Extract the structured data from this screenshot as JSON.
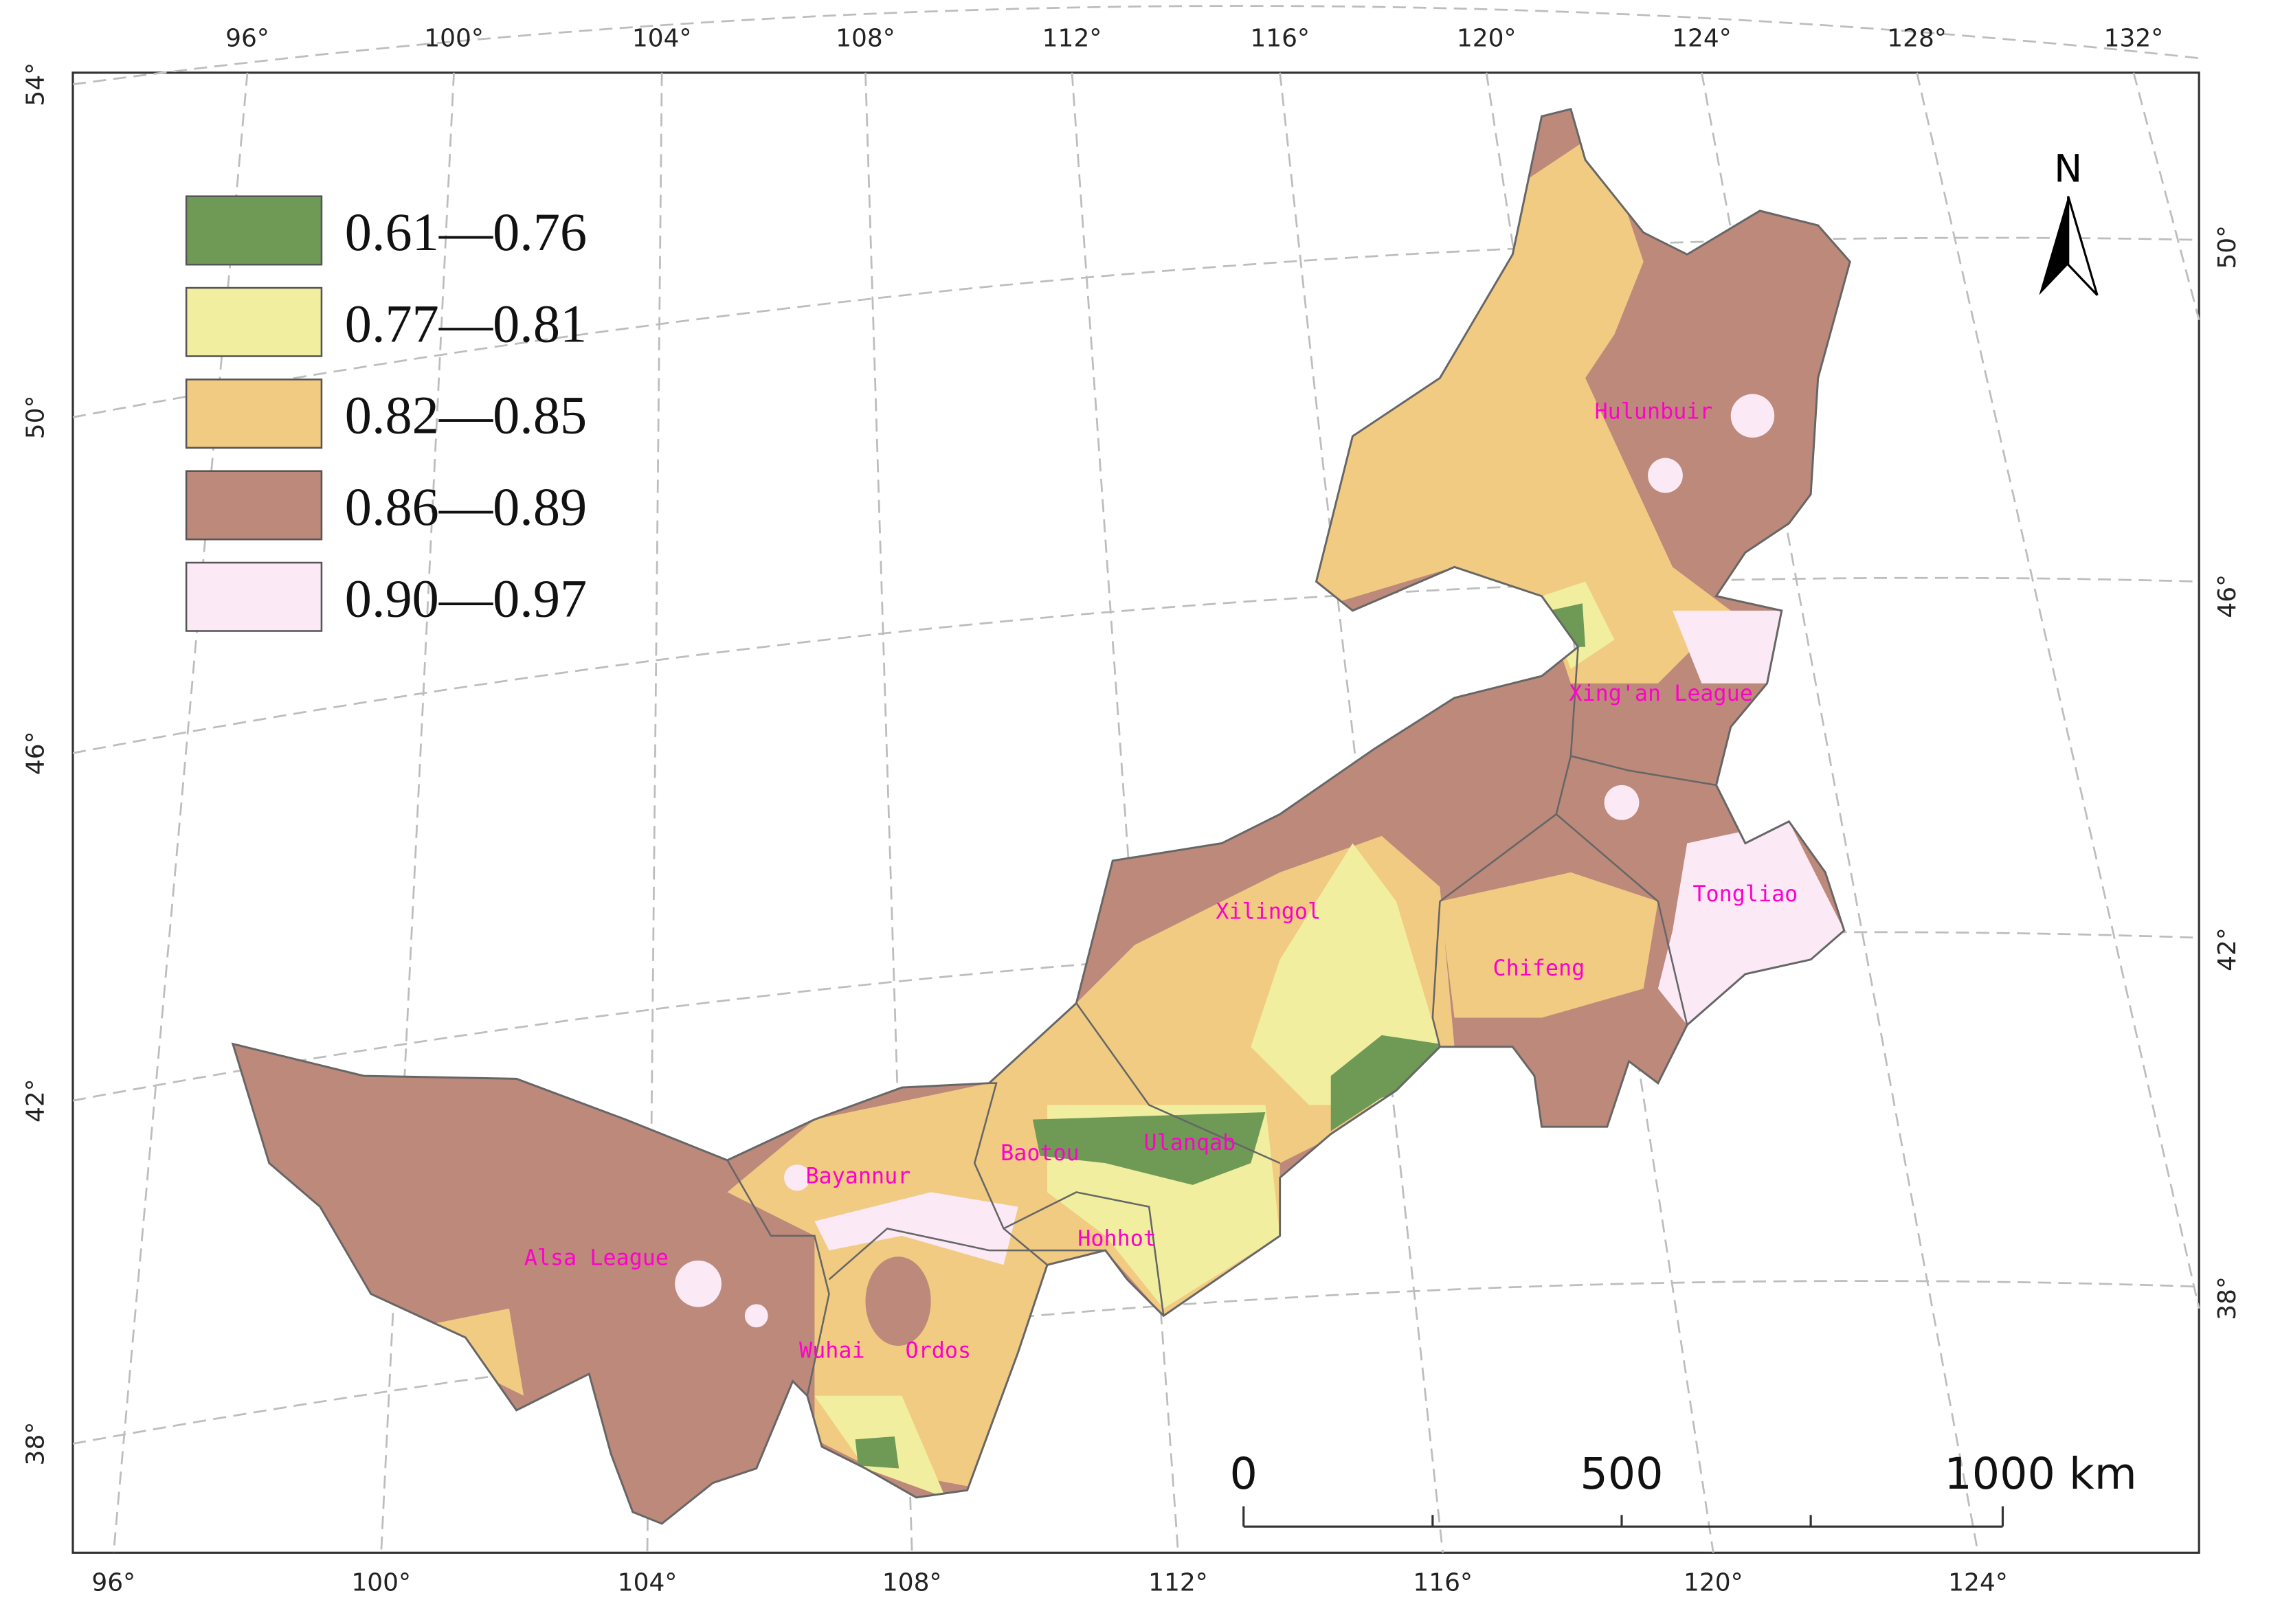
{
  "map": {
    "top_labels": [
      "96°",
      "100°",
      "104°",
      "108°",
      "112°",
      "116°",
      "120°",
      "124°",
      "128°",
      "132°"
    ],
    "bottom_labels": [
      "96°",
      "100°",
      "104°",
      "108°",
      "112°",
      "116°",
      "120°",
      "124°"
    ],
    "left_labels": [
      "54°",
      "50°",
      "46°",
      "42°",
      "38°"
    ],
    "right_labels": [
      "50°",
      "46°",
      "42°",
      "38°"
    ],
    "legend": [
      {
        "label": "0.61—0.76",
        "color": "#6f9a56"
      },
      {
        "label": "0.77—0.81",
        "color": "#f1ef9f"
      },
      {
        "label": "0.82—0.85",
        "color": "#f1cb82"
      },
      {
        "label": "0.86—0.89",
        "color": "#bd897a"
      },
      {
        "label": "0.90—0.97",
        "color": "#fbe9f6"
      }
    ],
    "north": "N",
    "scale_bar": [
      "0",
      "500",
      "1000 km"
    ],
    "regions": [
      "Hulunbuir",
      "Xing'an League",
      "Tongliao",
      "Xilingol",
      "Chifeng",
      "Ulanqab",
      "Baotou",
      "Bayannur",
      "Hohhot",
      "Alsa League",
      "Wuhai",
      "Ordos"
    ]
  }
}
